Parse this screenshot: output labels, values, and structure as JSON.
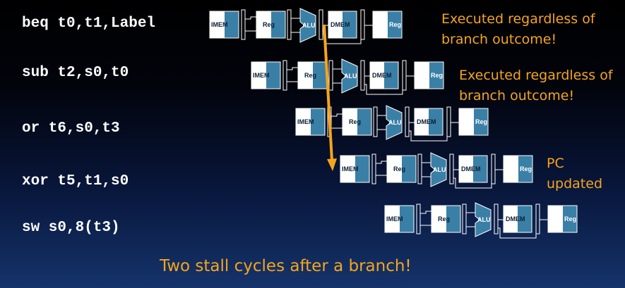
{
  "instructions": [
    "beq t0,t1,Label",
    "sub t2,s0,t0",
    "or t6,s0,t3",
    "xor t5,t1,s0",
    "sw s0,8(t3)"
  ],
  "stages": [
    "IMEM",
    "Reg",
    "ALU",
    "DMEM",
    "Reg"
  ],
  "notes": {
    "note1_line1": "Executed regardless of",
    "note1_line2": "branch outcome!",
    "note2_line1": "Executed regardless of",
    "note2_line2": "branch outcome!",
    "pc_line1": "PC",
    "pc_line2": "updated"
  },
  "footer": "Two stall cycles after a branch!",
  "colors": {
    "text": "#ffffff",
    "highlight": "#f5a51d",
    "stage_blue": "#3a7fa6",
    "arrow": "#f5a51d"
  }
}
